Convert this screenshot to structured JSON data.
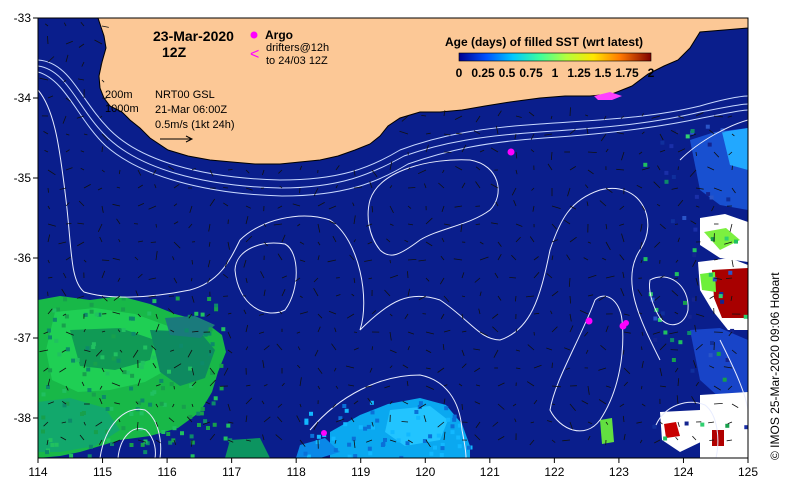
{
  "map": {
    "date_line1": "23-Mar-2020",
    "date_line2": "12Z",
    "argo_label": "Argo",
    "drifters_line1": "drifters@12h",
    "drifters_line2": "to 24/03 12Z",
    "contour_200": "200m",
    "contour_1000": "1000m",
    "gsl_line1": "NRT00 GSL",
    "gsl_line2": "21-Mar 06:00Z",
    "scale_label": "0.5m/s (1kt 24h)",
    "credit": "© IMOS 25-Mar-2020 09:06 Hobart",
    "x_ticks": [
      "114",
      "115",
      "116",
      "117",
      "118",
      "119",
      "120",
      "121",
      "122",
      "123",
      "124",
      "125"
    ],
    "y_ticks": [
      "-33",
      "-34",
      "-35",
      "-36",
      "-37",
      "-38"
    ],
    "colors": {
      "ocean": "#0a1e8c",
      "land": "#fcc896",
      "argo": "#ff00ff"
    }
  },
  "legend": {
    "title": "Age (days) of filled SST (wrt latest)",
    "ticks": [
      "0",
      "0.25",
      "0.5",
      "0.75",
      "1",
      "1.25",
      "1.5",
      "1.75",
      "2"
    ],
    "colors": [
      "#00008f",
      "#0050ff",
      "#00c8ff",
      "#3cff9e",
      "#b4ff3c",
      "#ffe600",
      "#ff7800",
      "#e00000",
      "#800000"
    ]
  }
}
